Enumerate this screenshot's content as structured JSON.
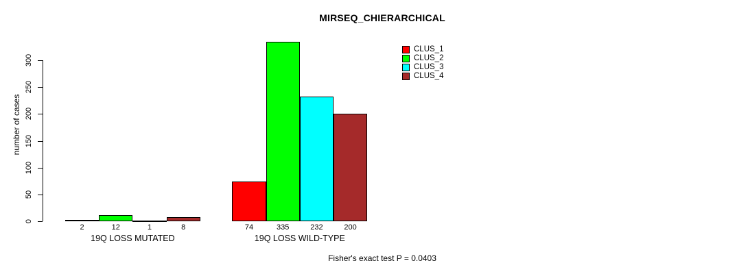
{
  "chart_data": {
    "type": "bar",
    "title": "MIRSEQ_CHIERARCHICAL",
    "ylabel": "number of cases",
    "xlabel": "",
    "ylim": [
      0,
      300
    ],
    "yticks": [
      0,
      50,
      100,
      150,
      200,
      250,
      300
    ],
    "grid": false,
    "legend_position": "top-right-inside",
    "bar_borders": true,
    "background": "#ffffff",
    "axis_color": "#000000",
    "categories": [
      "19Q LOSS MUTATED",
      "19Q LOSS WILD-TYPE"
    ],
    "series": [
      {
        "name": "CLUS_1",
        "color": "#ff0000",
        "values": [
          2,
          74
        ]
      },
      {
        "name": "CLUS_2",
        "color": "#00ff00",
        "values": [
          12,
          335
        ]
      },
      {
        "name": "CLUS_3",
        "color": "#00ffff",
        "values": [
          1,
          232
        ]
      },
      {
        "name": "CLUS_4",
        "color": "#a52a2a",
        "values": [
          8,
          200
        ]
      }
    ],
    "value_labels_shown": true,
    "annotation": "Fisher's exact test P = 0.0403"
  }
}
